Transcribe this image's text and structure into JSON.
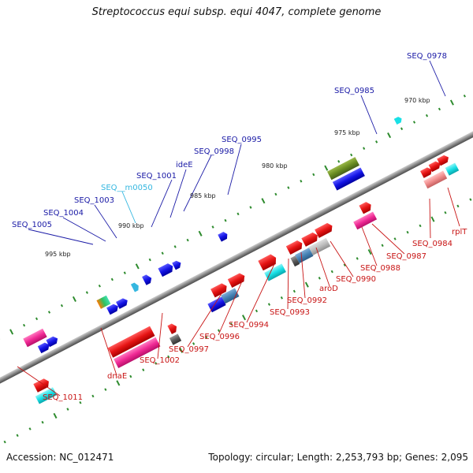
{
  "header": {
    "title": "Streptococcus equi subsp. equi 4047, complete genome"
  },
  "footer": {
    "accession": "Accession: NC_012471",
    "summary": "Topology: circular; Length: 2,253,793 bp; Genes: 2,095"
  },
  "scale_labels": [
    "970 kbp",
    "975 kbp",
    "980 kbp",
    "985 kbp",
    "990 kbp",
    "995 kbp"
  ],
  "top_labels": [
    {
      "text": "SEQ_0978",
      "style": "blue"
    },
    {
      "text": "SEQ_0985",
      "style": "blue"
    },
    {
      "text": "SEQ_0995",
      "style": "blue"
    },
    {
      "text": "SEQ_0998",
      "style": "blue"
    },
    {
      "text": "ideE",
      "style": "blue"
    },
    {
      "text": "SEQ_1001",
      "style": "blue"
    },
    {
      "text": "SEQ__m0050",
      "style": "cyan"
    },
    {
      "text": "SEQ_1003",
      "style": "blue"
    },
    {
      "text": "SEQ_1004",
      "style": "blue"
    },
    {
      "text": "SEQ_1005",
      "style": "blue"
    }
  ],
  "bottom_labels": [
    {
      "text": "rplT"
    },
    {
      "text": "SEQ_0984"
    },
    {
      "text": "SEQ_0987"
    },
    {
      "text": "SEQ_0988"
    },
    {
      "text": "SEQ_0990"
    },
    {
      "text": "aroD"
    },
    {
      "text": "SEQ_0992"
    },
    {
      "text": "SEQ_0993"
    },
    {
      "text": "SEQ_0994"
    },
    {
      "text": "SEQ_0996"
    },
    {
      "text": "SEQ_0997"
    },
    {
      "text": "SEQ_1002"
    },
    {
      "text": "dnaE"
    },
    {
      "text": "SEQ_1011"
    }
  ],
  "colors": {
    "backbone": "#8a8a8a",
    "scale_tick": "#2e8b2e",
    "forward_gene": "#1414e6",
    "reverse_gene": "#e61414",
    "rna": "#ff3aa0",
    "cyan_feature": "#19e0e6",
    "olive_feature": "#6b8e23",
    "grey_feature": "#555555",
    "steel_feature": "#4682b4"
  }
}
